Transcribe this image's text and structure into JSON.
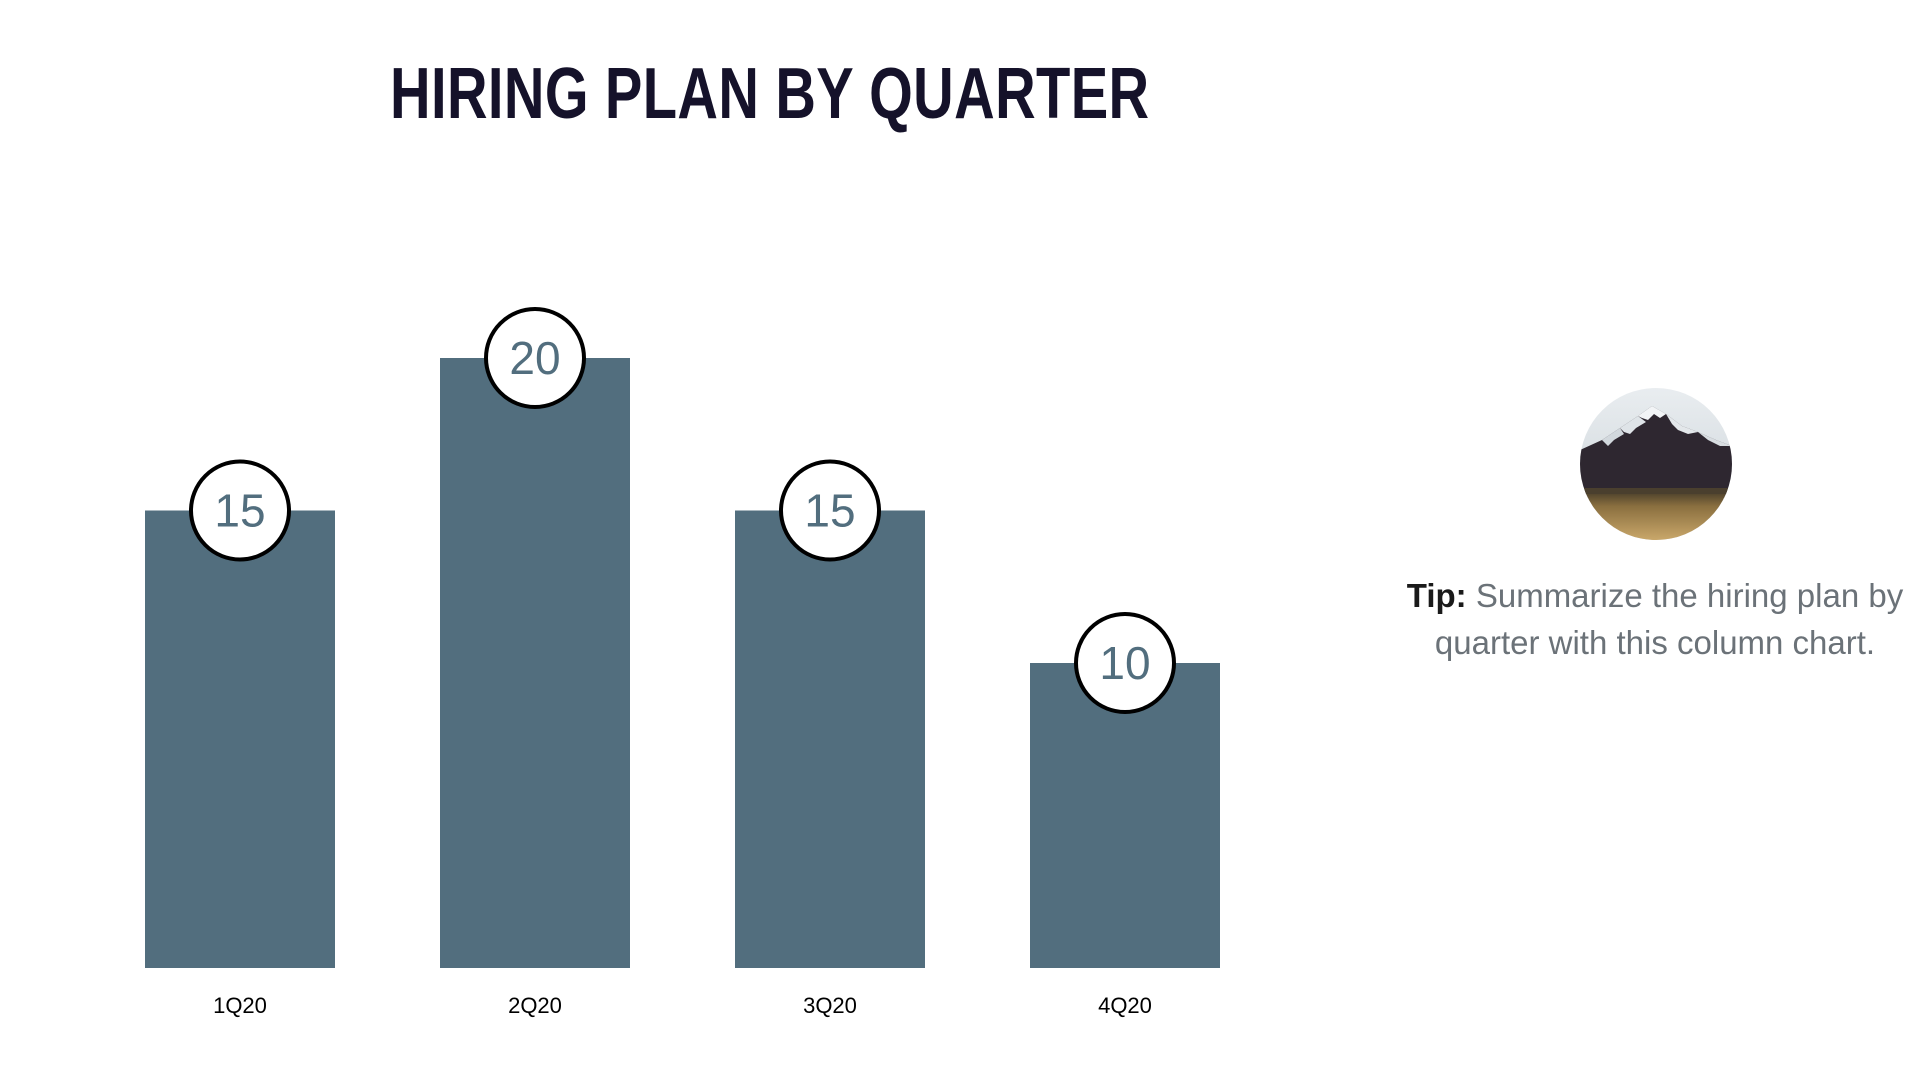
{
  "slide": {
    "title": "HIRING PLAN BY QUARTER",
    "tip_label": "Tip:",
    "tip_text": " Summarize the hiring plan by quarter with this column chart."
  },
  "colors": {
    "bar": "#526e7e",
    "title": "#15122a",
    "tip_text": "#6b7278"
  },
  "chart_data": {
    "type": "bar",
    "title": "HIRING PLAN BY QUARTER",
    "categories": [
      "1Q20",
      "2Q20",
      "3Q20",
      "4Q20"
    ],
    "values": [
      15,
      20,
      15,
      10
    ],
    "xlabel": "",
    "ylabel": "",
    "ylim": [
      0,
      30
    ],
    "grid": false,
    "legend": "none",
    "data_labels": true
  }
}
